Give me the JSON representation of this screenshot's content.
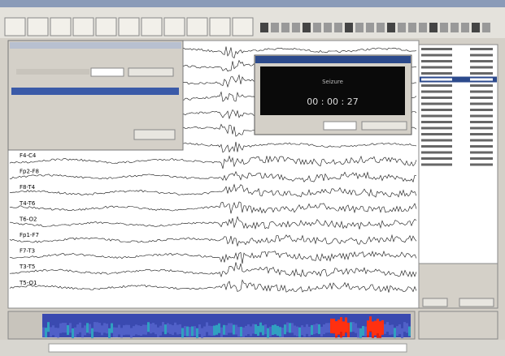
{
  "dialog": {
    "label": "Seizure",
    "timer": "00 : 00 : 27"
  },
  "channels": [
    "F4-C4",
    "Fp2-F8",
    "F8-T4",
    "T4-T6",
    "T6-O2",
    "Fp1-F7",
    "F7-T3",
    "T3-T5",
    "T5-O1"
  ]
}
